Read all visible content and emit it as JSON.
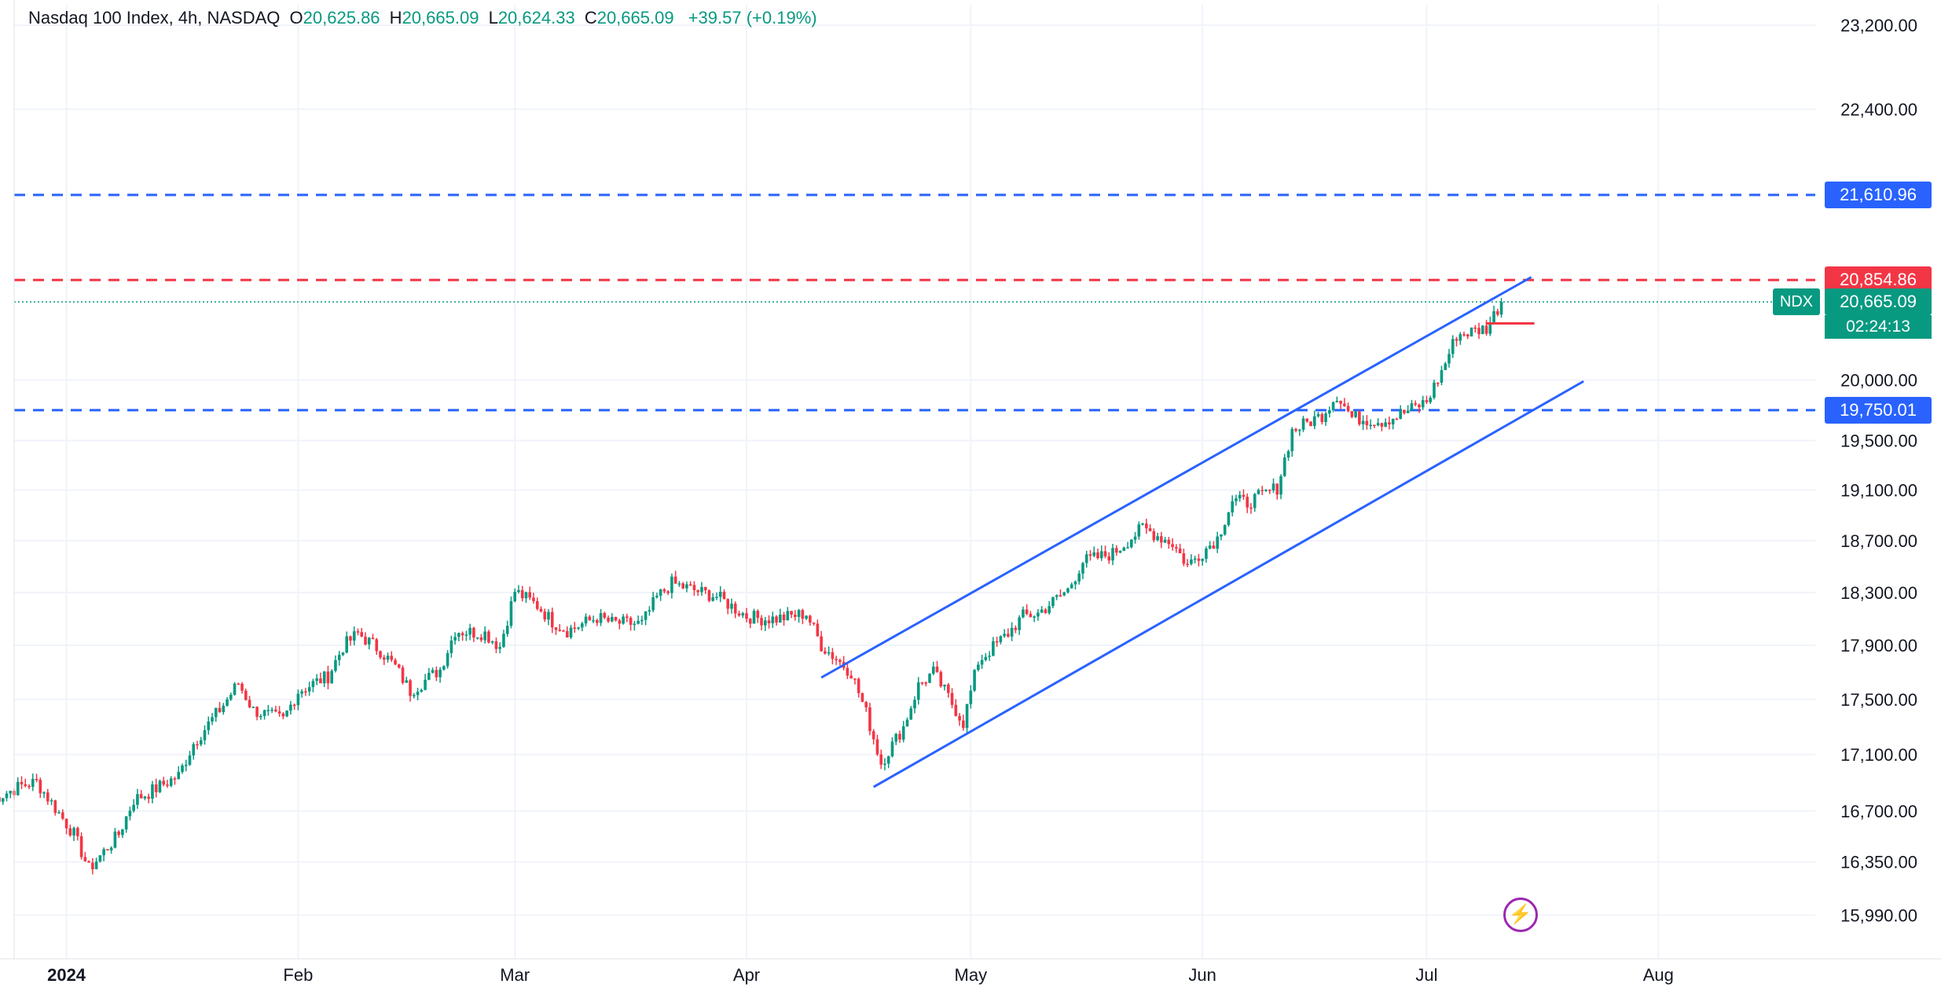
{
  "header": {
    "symbol": "Nasdaq 100 Index, 4h, NASDAQ",
    "o_label": "O",
    "o_value": "20,625.86",
    "h_label": "H",
    "h_value": "20,665.09",
    "l_label": "L",
    "l_value": "20,624.33",
    "c_label": "C",
    "c_value": "20,665.09",
    "change": "+39.57 (+0.19%)"
  },
  "colors": {
    "up": "#089981",
    "down": "#f23645",
    "channel": "#2962ff",
    "grid": "#f0f3fa",
    "axis_text": "#131722"
  },
  "badges": {
    "level_top": "21,610.96",
    "level_red": "20,854.86",
    "ndx_tag": "NDX",
    "price": "20,665.09",
    "timer": "02:24:13",
    "level_bottom": "19,750.01"
  },
  "icons": {
    "flash": "lightning-icon"
  },
  "chart_data": {
    "type": "candlestick",
    "y_scale": "log",
    "ylim": [
      15700,
      23400
    ],
    "x_range": [
      "2023-12-25",
      "2024-08-22"
    ],
    "y_ticks": [
      15990,
      16350,
      16700,
      17100,
      17500,
      17900,
      18300,
      18700,
      19100,
      19500,
      20000,
      22400,
      23200
    ],
    "y_tick_labels": [
      "15,990.00",
      "16,350.00",
      "16,700.00",
      "17,100.00",
      "17,500.00",
      "17,900.00",
      "18,300.00",
      "18,700.00",
      "19,100.00",
      "19,500.00",
      "20,000.00",
      "22,400.00",
      "23,200.00"
    ],
    "x_ticks": [
      "2024-01-01",
      "2024-02-01",
      "2024-03-01",
      "2024-04-01",
      "2024-05-01",
      "2024-06-01",
      "2024-07-01",
      "2024-08-01"
    ],
    "x_tick_labels": [
      "2024",
      "Feb",
      "Mar",
      "Apr",
      "May",
      "Jun",
      "Jul",
      "Aug"
    ],
    "grid": true,
    "horizontal_levels": [
      {
        "value": 21610.96,
        "color": "#2962ff",
        "style": "dashed"
      },
      {
        "value": 20854.86,
        "color": "#f23645",
        "style": "dashed"
      },
      {
        "value": 19750.01,
        "color": "#2962ff",
        "style": "dashed"
      }
    ],
    "last_price": 20665.09,
    "channel_upper": [
      [
        "2024-04-11",
        17660
      ],
      [
        "2024-07-15",
        20880
      ]
    ],
    "channel_lower": [
      [
        "2024-04-18",
        16870
      ],
      [
        "2024-07-22",
        19990
      ]
    ],
    "closes": [
      [
        "2023-12-22",
        16780
      ],
      [
        "2023-12-26",
        16880
      ],
      [
        "2023-12-28",
        16905
      ],
      [
        "2024-01-02",
        16540
      ],
      [
        "2024-01-04",
        16300
      ],
      [
        "2024-01-08",
        16540
      ],
      [
        "2024-01-10",
        16780
      ],
      [
        "2024-01-12",
        16830
      ],
      [
        "2024-01-16",
        16950
      ],
      [
        "2024-01-18",
        17180
      ],
      [
        "2024-01-22",
        17460
      ],
      [
        "2024-01-24",
        17620
      ],
      [
        "2024-01-26",
        17420
      ],
      [
        "2024-01-30",
        17350
      ],
      [
        "2024-02-01",
        17560
      ],
      [
        "2024-02-05",
        17670
      ],
      [
        "2024-02-07",
        17890
      ],
      [
        "2024-02-09",
        17990
      ],
      [
        "2024-02-12",
        17860
      ],
      [
        "2024-02-14",
        17740
      ],
      [
        "2024-02-16",
        17560
      ],
      [
        "2024-02-20",
        17720
      ],
      [
        "2024-02-22",
        18010
      ],
      [
        "2024-02-26",
        17990
      ],
      [
        "2024-02-28",
        17890
      ],
      [
        "2024-03-01",
        18310
      ],
      [
        "2024-03-04",
        18200
      ],
      [
        "2024-03-06",
        18080
      ],
      [
        "2024-03-08",
        18010
      ],
      [
        "2024-03-12",
        18110
      ],
      [
        "2024-03-14",
        18070
      ],
      [
        "2024-03-18",
        18060
      ],
      [
        "2024-03-20",
        18260
      ],
      [
        "2024-03-22",
        18370
      ],
      [
        "2024-03-26",
        18300
      ],
      [
        "2024-03-28",
        18270
      ],
      [
        "2024-04-01",
        18120
      ],
      [
        "2024-04-03",
        18100
      ],
      [
        "2024-04-05",
        18100
      ],
      [
        "2024-04-09",
        18140
      ],
      [
        "2024-04-11",
        17900
      ],
      [
        "2024-04-15",
        17700
      ],
      [
        "2024-04-17",
        17400
      ],
      [
        "2024-04-19",
        17040
      ],
      [
        "2024-04-22",
        17300
      ],
      [
        "2024-04-24",
        17600
      ],
      [
        "2024-04-26",
        17700
      ],
      [
        "2024-04-30",
        17330
      ],
      [
        "2024-05-02",
        17780
      ],
      [
        "2024-05-06",
        17990
      ],
      [
        "2024-05-08",
        18120
      ],
      [
        "2024-05-10",
        18140
      ],
      [
        "2024-05-14",
        18320
      ],
      [
        "2024-05-16",
        18540
      ],
      [
        "2024-05-20",
        18600
      ],
      [
        "2024-05-22",
        18700
      ],
      [
        "2024-05-24",
        18800
      ],
      [
        "2024-05-28",
        18680
      ],
      [
        "2024-05-30",
        18510
      ],
      [
        "2024-06-03",
        18720
      ],
      [
        "2024-06-05",
        19020
      ],
      [
        "2024-06-07",
        19000
      ],
      [
        "2024-06-11",
        19120
      ],
      [
        "2024-06-13",
        19580
      ],
      [
        "2024-06-17",
        19710
      ],
      [
        "2024-06-19",
        19880
      ],
      [
        "2024-06-21",
        19690
      ],
      [
        "2024-06-25",
        19660
      ],
      [
        "2024-06-27",
        19700
      ],
      [
        "2024-07-01",
        19820
      ],
      [
        "2024-07-03",
        20070
      ],
      [
        "2024-07-05",
        20380
      ],
      [
        "2024-07-09",
        20440
      ],
      [
        "2024-07-11",
        20665.09
      ]
    ]
  }
}
